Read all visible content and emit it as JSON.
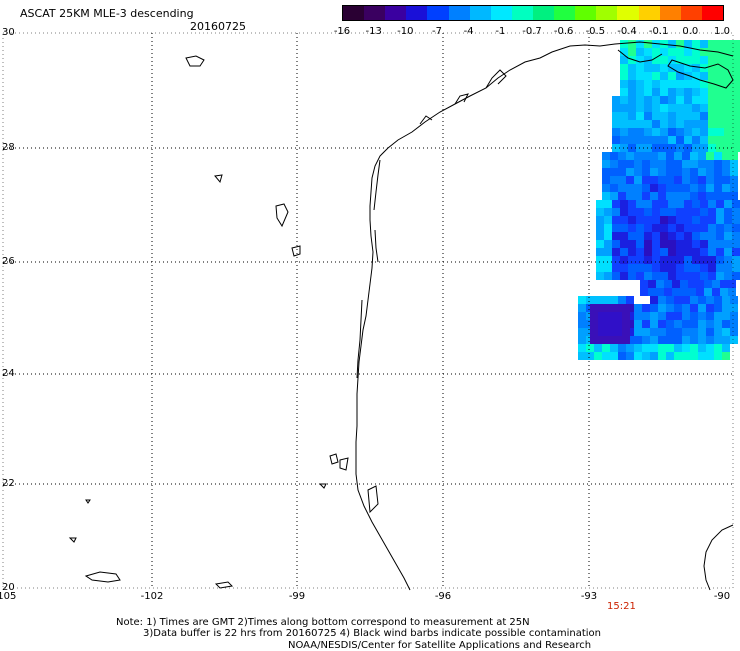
{
  "header": {
    "title": "ASCAT 25KM MLE-3 descending",
    "date": "20160725"
  },
  "colorbar": {
    "ticks": [
      "-16",
      "-13",
      "-10",
      "-7",
      "-4",
      "-1",
      "-0.7",
      "-0.6",
      "-0.5",
      "-0.4",
      "-0.1",
      "0.0",
      "1.0"
    ],
    "colors": [
      "#2a0033",
      "#3a0060",
      "#3a00a0",
      "#1a10d8",
      "#0040ff",
      "#0080ff",
      "#00b8ff",
      "#00e8ff",
      "#00ffc0",
      "#00f080",
      "#20ff40",
      "#60ff00",
      "#a0ff00",
      "#e0ff00",
      "#ffd000",
      "#ff8000",
      "#ff4000",
      "#ff0000"
    ]
  },
  "axes": {
    "lat_labels": [
      "30",
      "28",
      "26",
      "24",
      "22",
      "20"
    ],
    "lon_labels": [
      "-105",
      "-102",
      "-99",
      "-96",
      "-93",
      "-90"
    ]
  },
  "time_label": "15:21",
  "notes": {
    "line1": "Note: 1) Times are GMT 2)Times along bottom correspond to measurement at 25N",
    "line2": "3)Data buffer is 22 hrs from 20160725 4) Black wind barbs indicate possible contamination",
    "line3": "NOAA/NESDIS/Center for Satellite Applications and Research"
  }
}
